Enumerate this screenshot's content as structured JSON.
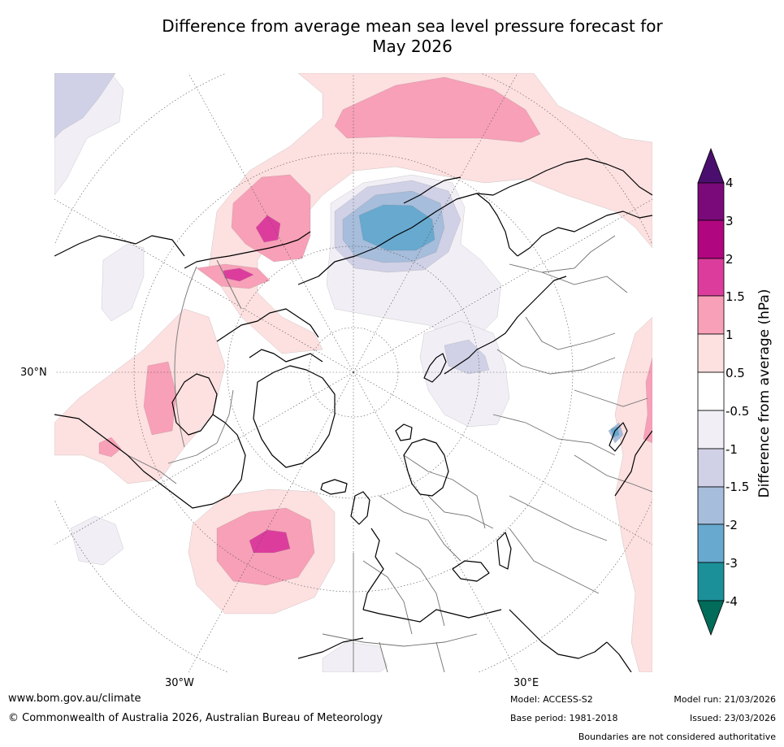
{
  "title_line1": "Difference from average mean sea level pressure forecast for",
  "title_line2": "May 2026",
  "map": {
    "labels": {
      "lat30n": "30°N",
      "lon30w": "30°W",
      "lon30e": "30°E"
    },
    "colors": {
      "coast": "#000000",
      "border": "#707070",
      "grid": "#555555"
    }
  },
  "legend": {
    "title": "Difference from average (hPa)",
    "ticks": [
      "4",
      "3",
      "2",
      "1.5",
      "1",
      "0.5",
      "-0.5",
      "-1",
      "-1.5",
      "-2",
      "-3",
      "-4"
    ],
    "colors": {
      "over": "#4a0f6e",
      "c3_4": "#7a0a7a",
      "c2_3": "#b0067f",
      "c15_2": "#dc3d9d",
      "c1_15": "#f7a0b7",
      "c05_1": "#fde0e0",
      "neutral": "#ffffff",
      "cm05_m1": "#f1eef5",
      "cm1_m15": "#d0d1e6",
      "cm15_m2": "#a6bddb",
      "cm2_m3": "#67a9cf",
      "cm3_m4": "#1c9099",
      "under": "#016c59"
    }
  },
  "footer": {
    "site": "www.bom.gov.au/climate",
    "copyright": "© Commonwealth of Australia 2026, Australian Bureau of Meteorology",
    "model": "Model: ACCESS-S2",
    "base_period": "Base period: 1981-2018",
    "model_run": "Model run: 21/03/2026",
    "issued": "Issued: 23/03/2026",
    "boundaries": "Boundaries are not considered authoritative"
  }
}
